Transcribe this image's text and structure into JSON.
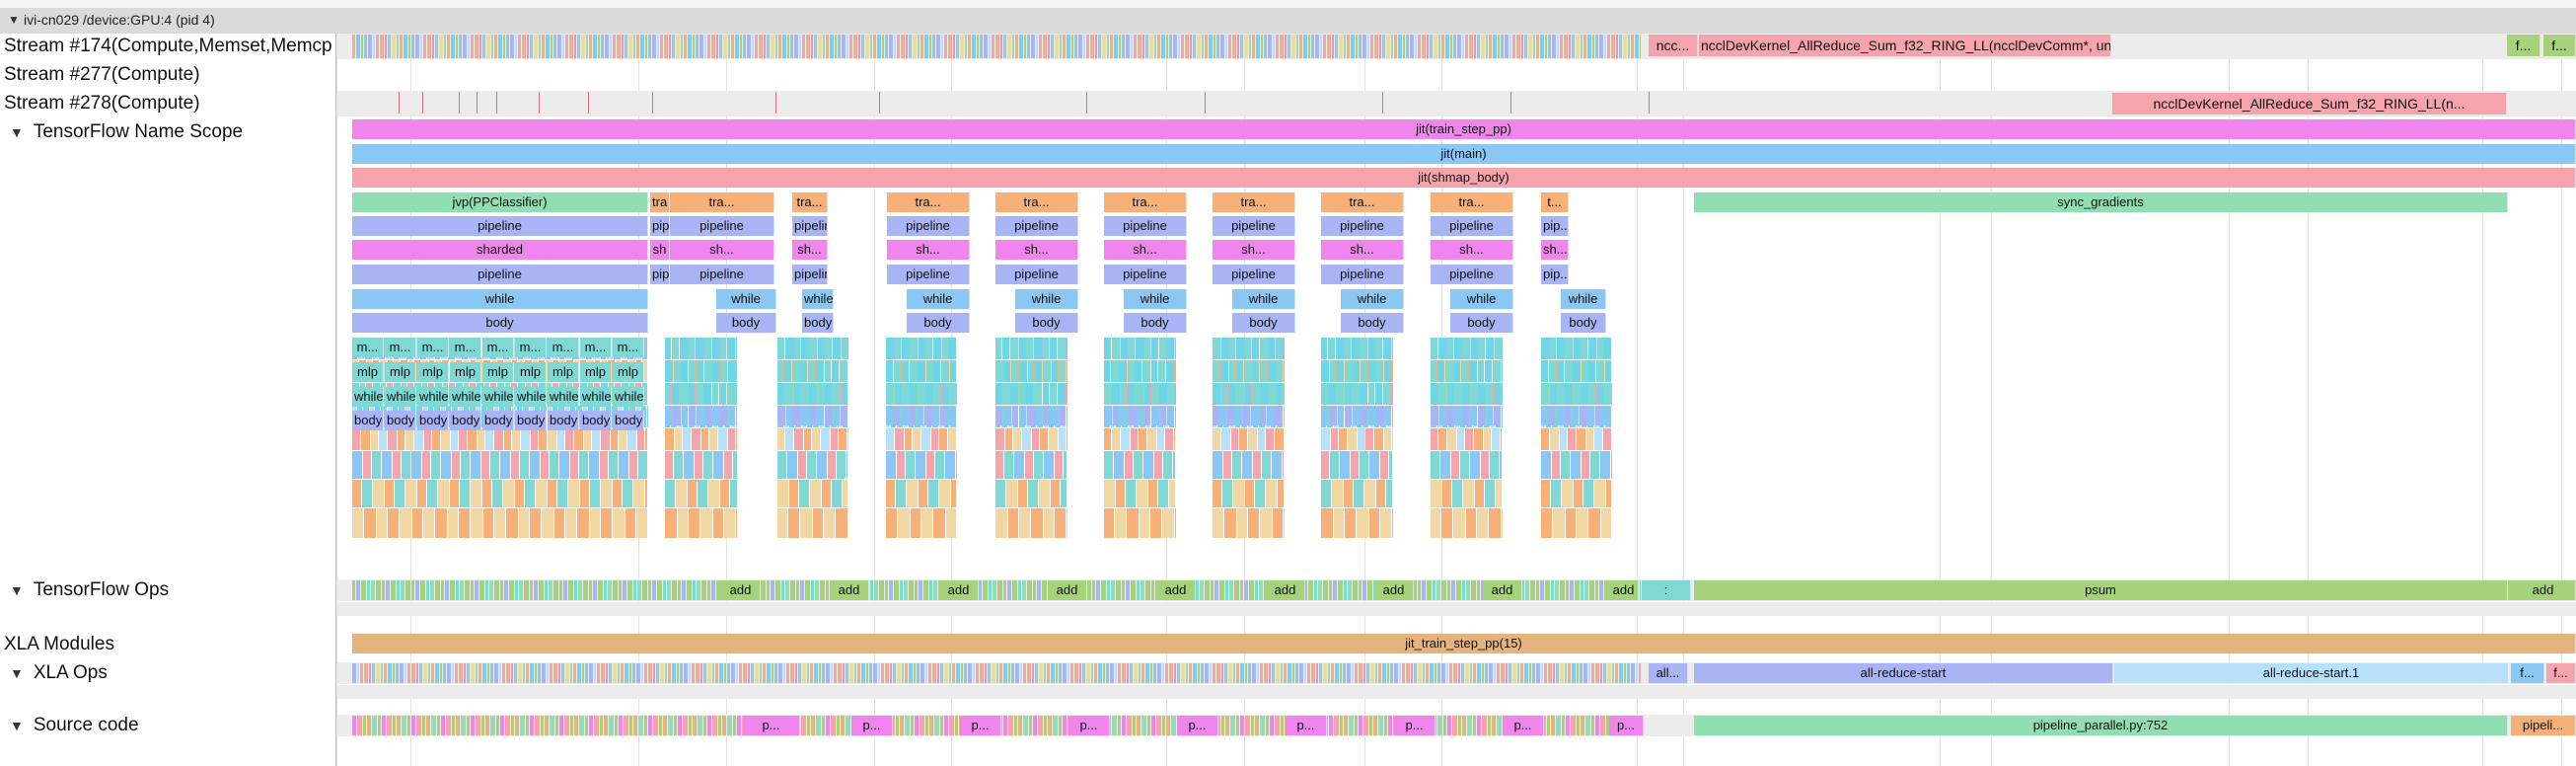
{
  "process": {
    "header": "ivi-cn029 /device:GPU:4 (pid 4)"
  },
  "colors": {
    "purple": "#f085ee",
    "blue": "#8bc7f5",
    "pink": "#f5a3ad",
    "green": "#8fdfb2",
    "periwinkle": "#a9b4f5",
    "teal": "#7fd8d3",
    "olive": "#a6d27b",
    "tan": "#e5b47e",
    "orange": "#f6b078",
    "lightblue": "#b7e0fb",
    "sand": "#f0d7a4",
    "cyan": "#6fd6e7",
    "grid": "#e2e2e2",
    "header": "#dadada"
  },
  "tracks": {
    "stream174": "Stream #174(Compute,Memset,Memcp",
    "stream277": "Stream #277(Compute)",
    "stream278": "Stream #278(Compute)",
    "tf_name_scope": "TensorFlow Name Scope",
    "tf_ops": "TensorFlow Ops",
    "xla_modules": "XLA Modules",
    "xla_ops": "XLA Ops",
    "source_code": "Source code"
  },
  "stream174": {
    "ncc_short": "ncc...",
    "allreduce": "ncclDevKernel_AllReduce_Sum_f32_RING_LL(ncclDevComm*, un...",
    "f_short": "f...",
    "f_short2": "f..."
  },
  "stream278": {
    "allreduce": "ncclDevKernel_AllReduce_Sum_f32_RING_LL(n..."
  },
  "scope": {
    "train_step": "jit(train_step_pp)",
    "main": "jit(main)",
    "shmap": "jit(shmap_body)",
    "jvp": "jvp(PPClassifier)",
    "tra_short": "tra",
    "tra": "tra...",
    "t": "t...",
    "sync": "sync_gradients",
    "pipeline": "pipeline",
    "pip_short": "pip",
    "pip": "pip...",
    "sharded": "sharded",
    "sh_short": "sh",
    "sh": "sh...",
    "while": "while",
    "body": "body",
    "m": "m...",
    "mlp": "mlp"
  },
  "tf_ops": {
    "add": "add",
    "colon": ":",
    "psum": "psum"
  },
  "xla_modules": {
    "module": "jit_train_step_pp(15)"
  },
  "xla_ops": {
    "all": "all...",
    "ar_start": "all-reduce-start",
    "ar_start1": "all-reduce-start.1",
    "f": "f...",
    "f_dot": "f..."
  },
  "source": {
    "p": "p...",
    "pipeline_parallel": "pipeline_parallel.py:752",
    "pipeli": "pipeli..."
  }
}
